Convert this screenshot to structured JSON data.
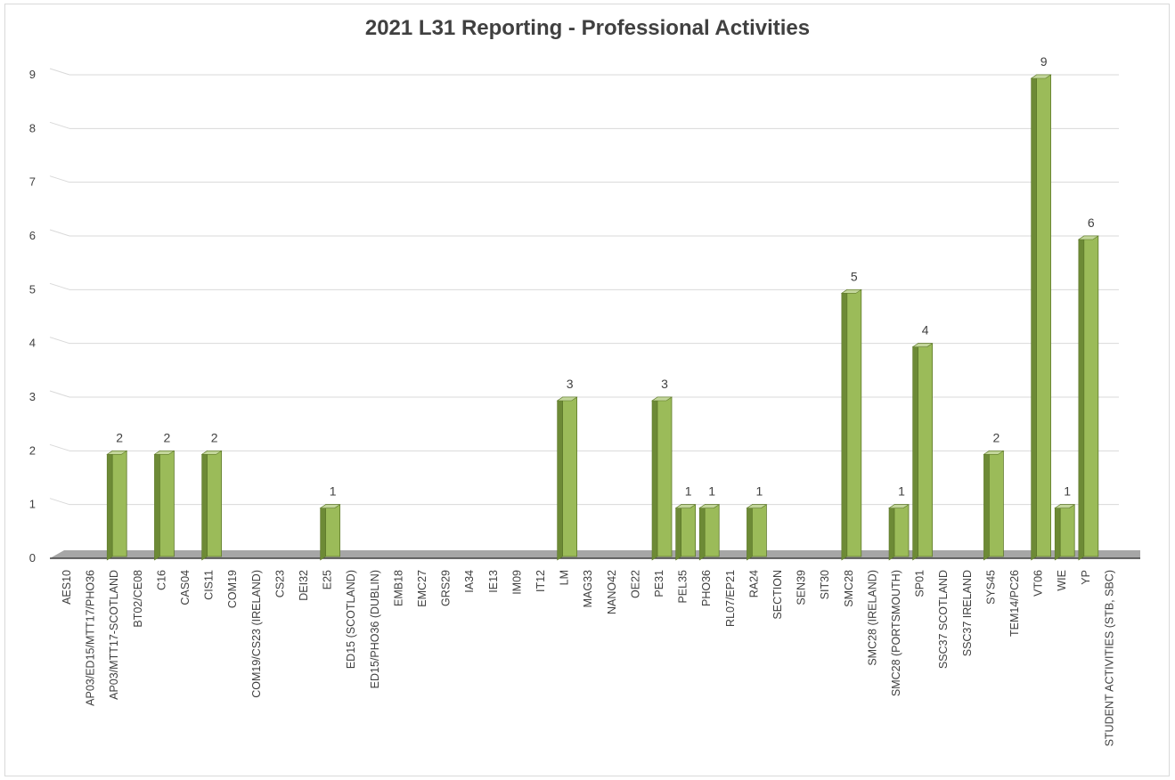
{
  "chart_data": {
    "type": "bar",
    "title": "2021 L31 Reporting - Professional Activities",
    "xlabel": "",
    "ylabel": "",
    "ylim": [
      0,
      9
    ],
    "yticks": [
      0,
      1,
      2,
      3,
      4,
      5,
      6,
      7,
      8,
      9
    ],
    "grid": true,
    "legend": "none",
    "bar_style": "3d-column",
    "colors": {
      "bar_front": "#9bbb59",
      "bar_side": "#6d8a36",
      "bar_top": "#c3d69b",
      "bar_edge": "#5f7a2b",
      "floor": "#a6a6a6",
      "grid": "#d9d9d9"
    },
    "categories": [
      "AES10",
      "AP03/ED15/MTT17/PHO36",
      "AP03/MTT17-SCOTLAND",
      "BT02/CE08",
      "C16",
      "CAS04",
      "CIS11",
      "COM19",
      "COM19/CS23 (IRELAND)",
      "CS23",
      "DEI32",
      "E25",
      "ED15 (SCOTLAND)",
      "ED15/PHO36 (DUBLIN)",
      "EMB18",
      "EMC27",
      "GRS29",
      "IA34",
      "IE13",
      "IM09",
      "IT12",
      "LM",
      "MAG33",
      "NANO42",
      "OE22",
      "PE31",
      "PEL35",
      "PHO36",
      "RL07/EP21",
      "RA24",
      "SECTION",
      "SEN39",
      "SIT30",
      "SMC28",
      "SMC28 (IRELAND)",
      "SMC28 (PORTSMOUTH)",
      "SP01",
      "SSC37 SCOTLAND",
      "SSC37 IRELAND",
      "SYS45",
      "TEM14/PC26",
      "VT06",
      "WIE",
      "YP",
      "STUDENT ACTIVITIES (STB, SBC)"
    ],
    "values": [
      0,
      0,
      2,
      0,
      2,
      0,
      2,
      0,
      0,
      0,
      0,
      1,
      0,
      0,
      0,
      0,
      0,
      0,
      0,
      0,
      0,
      3,
      0,
      0,
      0,
      3,
      1,
      1,
      0,
      1,
      0,
      0,
      0,
      5,
      0,
      1,
      4,
      0,
      0,
      2,
      0,
      9,
      1,
      6,
      0
    ]
  }
}
